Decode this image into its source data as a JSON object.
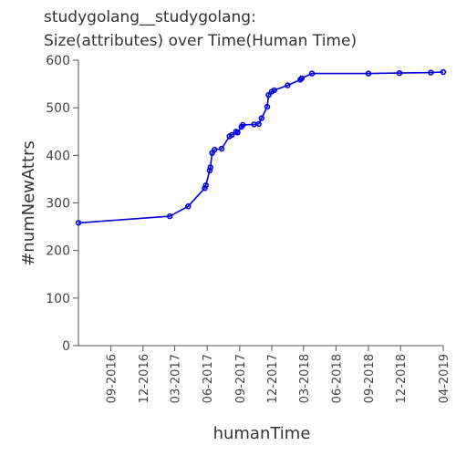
{
  "chart_data": {
    "type": "line",
    "title_lines": [
      "studygolang__studygolang:",
      "Size(attributes) over Time(Human Time)"
    ],
    "xlabel": "humanTime",
    "ylabel": "#numNewAttrs",
    "ylim": [
      0,
      600
    ],
    "y_ticks": [
      0,
      100,
      200,
      300,
      400,
      500,
      600
    ],
    "xlim": [
      "2016-06-01",
      "2019-04-01"
    ],
    "x_ticks": [
      {
        "date": "2016-09-01",
        "label": "09-2016"
      },
      {
        "date": "2016-12-01",
        "label": "12-2016"
      },
      {
        "date": "2017-03-01",
        "label": "03-2017"
      },
      {
        "date": "2017-06-01",
        "label": "06-2017"
      },
      {
        "date": "2017-09-01",
        "label": "09-2017"
      },
      {
        "date": "2017-12-01",
        "label": "12-2017"
      },
      {
        "date": "2018-03-01",
        "label": "03-2018"
      },
      {
        "date": "2018-06-01",
        "label": "06-2018"
      },
      {
        "date": "2018-09-01",
        "label": "09-2018"
      },
      {
        "date": "2018-12-01",
        "label": "12-2018"
      },
      {
        "date": "2019-04-01",
        "label": "04-2019"
      }
    ],
    "grid": false,
    "color": "#0000dd",
    "series": [
      {
        "x": [
          "2016-06-01",
          "2017-02-15",
          "2017-04-08",
          "2017-05-25",
          "2017-05-28",
          "2017-06-08",
          "2017-06-10",
          "2017-06-15",
          "2017-06-22",
          "2017-07-12",
          "2017-08-03",
          "2017-08-10",
          "2017-08-22",
          "2017-08-26",
          "2017-09-06",
          "2017-09-10",
          "2017-10-12",
          "2017-10-25",
          "2017-11-02",
          "2017-11-18",
          "2017-11-22",
          "2017-12-01",
          "2017-12-08",
          "2018-01-15",
          "2018-02-20",
          "2018-02-24",
          "2018-03-25",
          "2018-09-01",
          "2018-11-28",
          "2019-02-25",
          "2019-04-01"
        ],
        "y": [
          258,
          272,
          293,
          331,
          337,
          368,
          375,
          405,
          412,
          414,
          440,
          443,
          450,
          448,
          460,
          464,
          465,
          466,
          478,
          502,
          527,
          534,
          537,
          547,
          559,
          562,
          572,
          572,
          573,
          574,
          575
        ]
      }
    ]
  }
}
